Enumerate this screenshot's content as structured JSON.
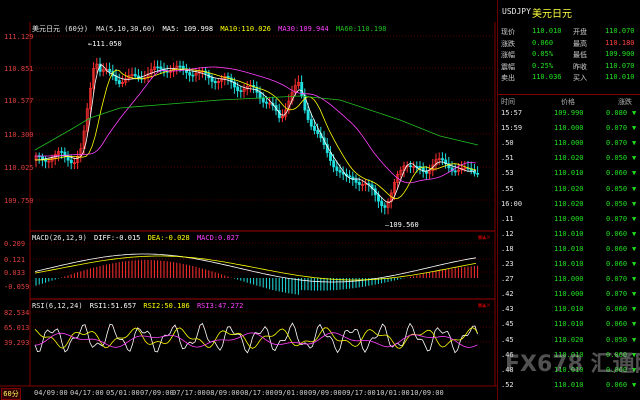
{
  "chart": {
    "main_header": {
      "title": "美元日元 (60分)",
      "ma_label": "MA(5,10,30,60)",
      "ma5": "MA5: 109.998",
      "ma10": "MA10:110.026",
      "ma30": "MA30:109.944",
      "ma60": "MA60:110.198"
    },
    "price_axis": [
      "111.129",
      "110.851",
      "110.577",
      "110.300",
      "110.025",
      "109.750"
    ],
    "annotation_high": "←111.050",
    "annotation_low": "—109.560",
    "macd_header": {
      "label": "MACD(26,12,9)",
      "diff": "DIFF:-0.015",
      "dea": "DEA:-0.028",
      "macd": "MACD:0.027"
    },
    "macd_axis": [
      "0.209",
      "0.121",
      "0.033",
      "-0.059"
    ],
    "rsi_header": {
      "label": "RSI(6,12,24)",
      "rsi1": "RSI1:51.657",
      "rsi2": "RSI2:50.186",
      "rsi3": "RSI3:47.272"
    },
    "rsi_axis": [
      "82.534",
      "65.013",
      "39.293"
    ],
    "period_badge": "60分",
    "x_labels": [
      "04/09:00",
      "04/17:00",
      "05/01:00",
      "07/09:00",
      "07/17:00",
      "08/09:00",
      "08/17:00",
      "09/01:00",
      "09/09:00",
      "09/17:00",
      "10/01:00",
      "10/09:00"
    ],
    "watermark": "FX678 汇通网",
    "colors": {
      "ma5": "#ffffff",
      "ma10": "#ffff00",
      "ma30": "#ff40ff",
      "ma60": "#20c020",
      "up": "#ff3030",
      "down": "#20e0e0"
    }
  },
  "panel": {
    "code": "USDJPY",
    "name": "美元日元",
    "quote": [
      {
        "l1": "现价",
        "v1": "110.010",
        "l2": "开盘",
        "v2": "110.070"
      },
      {
        "l1": "涨跌",
        "v1": "0.060",
        "l2": "最高",
        "v2": "110.180"
      },
      {
        "l1": "涨幅",
        "v1": "0.05%",
        "l2": "最低",
        "v2": "109.900"
      },
      {
        "l1": "震幅",
        "v1": "0.25%",
        "l2": "昨收",
        "v2": "110.070"
      },
      {
        "l1": "卖出",
        "v1": "110.036",
        "l2": "买入",
        "v2": "110.010"
      }
    ],
    "ticks_header": {
      "time": "时间",
      "price": "价格",
      "change": "涨跌"
    },
    "ticks": [
      {
        "t": "15:57",
        "p": "109.990",
        "c": "0.080"
      },
      {
        "t": "15:59",
        "p": "110.000",
        "c": "0.070"
      },
      {
        "t": ".50",
        "p": "110.000",
        "c": "0.070"
      },
      {
        "t": ".51",
        "p": "110.020",
        "c": "0.050"
      },
      {
        "t": ".53",
        "p": "110.010",
        "c": "0.060"
      },
      {
        "t": ".55",
        "p": "110.020",
        "c": "0.050"
      },
      {
        "t": "16:00",
        "p": "110.020",
        "c": "0.050"
      },
      {
        "t": ".11",
        "p": "110.000",
        "c": "0.070"
      },
      {
        "t": ".12",
        "p": "110.010",
        "c": "0.060"
      },
      {
        "t": ".18",
        "p": "110.010",
        "c": "0.060"
      },
      {
        "t": ".23",
        "p": "110.010",
        "c": "0.060"
      },
      {
        "t": ".27",
        "p": "110.000",
        "c": "0.070"
      },
      {
        "t": ".42",
        "p": "110.000",
        "c": "0.070"
      },
      {
        "t": ".43",
        "p": "110.010",
        "c": "0.060"
      },
      {
        "t": ".45",
        "p": "110.010",
        "c": "0.060"
      },
      {
        "t": ".45",
        "p": "110.020",
        "c": "0.050"
      },
      {
        "t": ".46",
        "p": "110.010",
        "c": "0.060"
      },
      {
        "t": ".48",
        "p": "110.010",
        "c": "0.060"
      },
      {
        "t": ".52",
        "p": "110.010",
        "c": "0.060"
      }
    ]
  }
}
